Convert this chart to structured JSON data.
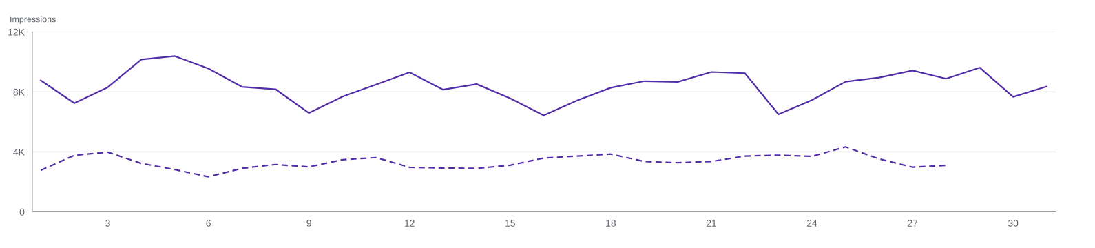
{
  "chart_data": {
    "type": "line",
    "ylabel": "Impressions",
    "x": [
      1,
      2,
      3,
      4,
      5,
      6,
      7,
      8,
      9,
      10,
      11,
      12,
      13,
      14,
      15,
      16,
      17,
      18,
      19,
      20,
      21,
      22,
      23,
      24,
      25,
      26,
      27,
      28,
      29,
      30,
      31
    ],
    "series": [
      {
        "color": "#512da8",
        "line_style": "solid",
        "values": [
          8770,
          7250,
          8310,
          10160,
          10390,
          9560,
          8340,
          8180,
          6590,
          7690,
          8490,
          9310,
          8150,
          8520,
          7570,
          6430,
          7430,
          8280,
          8720,
          8670,
          9330,
          9250,
          6500,
          7460,
          8680,
          8960,
          9430,
          8880,
          9620,
          7670,
          8360
        ]
      },
      {
        "color": "#512da8",
        "line_style": "dashed",
        "x": [
          1,
          2,
          3,
          4,
          5,
          6,
          7,
          8,
          9,
          10,
          11,
          12,
          13,
          14,
          15,
          16,
          17,
          18,
          19,
          20,
          21,
          22,
          23,
          24,
          25,
          26,
          27,
          28
        ],
        "values": [
          2770,
          3770,
          3980,
          3230,
          2820,
          2340,
          2900,
          3160,
          3000,
          3480,
          3620,
          2970,
          2920,
          2900,
          3110,
          3590,
          3720,
          3850,
          3360,
          3280,
          3360,
          3720,
          3780,
          3700,
          4330,
          3530,
          2980,
          3100
        ]
      }
    ],
    "xlim": [
      0.75,
      31.27
    ],
    "xticks": [
      3,
      6,
      9,
      12,
      15,
      18,
      21,
      24,
      27,
      30
    ],
    "ylim": [
      0,
      12000
    ],
    "yticks": [
      0,
      {
        "value": 4000,
        "label": "4K"
      },
      {
        "value": 8000,
        "label": "8K"
      },
      {
        "value": 12000,
        "label": "12K"
      }
    ],
    "grid": "y",
    "marker": "none"
  }
}
